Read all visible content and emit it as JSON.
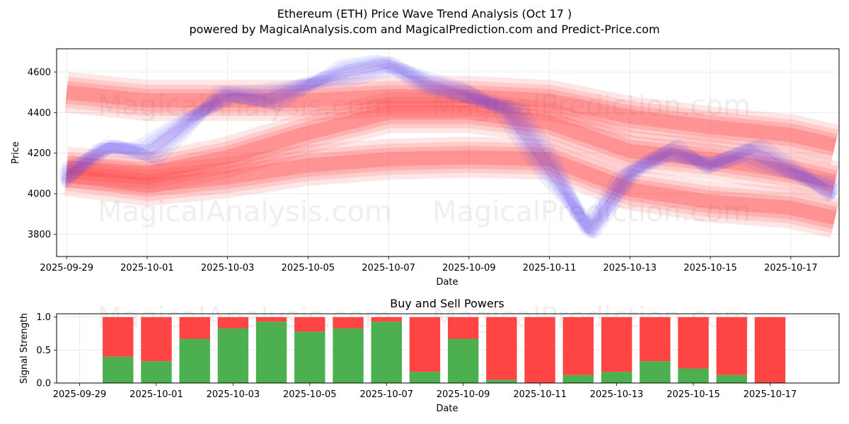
{
  "title_line1": "Ethereum (ETH) Price Wave Trend Analysis (Oct 17 )",
  "title_line2": "powered by MagicalAnalysis.com and MagicalPrediction.com and Predict-Price.com",
  "watermarks": [
    "MagicalAnalysis.com",
    "MagicalPrediction.com"
  ],
  "colors": {
    "buy": "#4caf50",
    "sell": "#ff4444",
    "price_band": "#ff3333",
    "price_line": "#4444ff"
  },
  "chart_data": [
    {
      "type": "line",
      "name": "price-wave",
      "xlabel": "Date",
      "ylabel": "Price",
      "ylim": [
        3690,
        4715
      ],
      "x_range_days": [
        -0.25,
        19.2
      ],
      "x_start_date": "2025-09-29",
      "xtick_labels": [
        "2025-09-29",
        "2025-10-01",
        "2025-10-03",
        "2025-10-05",
        "2025-10-07",
        "2025-10-09",
        "2025-10-11",
        "2025-10-13",
        "2025-10-15",
        "2025-10-17"
      ],
      "ytick_values": [
        3800,
        4000,
        4200,
        4400,
        4600
      ],
      "grid": true,
      "price_series": {
        "name": "Blue price waves",
        "x": [
          0,
          1,
          2,
          3,
          4,
          5,
          6,
          7,
          8,
          9,
          10,
          11,
          12,
          13,
          14,
          15,
          16,
          17,
          18,
          19
        ],
        "values": [
          4090,
          4230,
          4200,
          4350,
          4490,
          4470,
          4540,
          4600,
          4640,
          4540,
          4490,
          4420,
          4130,
          3820,
          4110,
          4210,
          4140,
          4210,
          4110,
          4020
        ]
      },
      "bands": [
        {
          "name": "upper-band",
          "x": [
            0,
            2,
            4,
            6,
            8,
            10,
            12,
            14,
            16,
            18,
            19.1
          ],
          "values": [
            4500,
            4460,
            4460,
            4460,
            4480,
            4480,
            4460,
            4380,
            4330,
            4290,
            4240
          ]
        },
        {
          "name": "lower-band",
          "x": [
            0,
            2,
            4,
            6,
            8,
            10,
            12,
            14,
            16,
            18,
            19.1
          ],
          "values": [
            4090,
            4040,
            4080,
            4140,
            4170,
            4180,
            4170,
            4020,
            3960,
            3930,
            3880
          ]
        },
        {
          "name": "middle-band",
          "x": [
            0,
            2,
            4,
            6,
            8,
            10,
            12,
            14,
            16,
            18,
            19.1
          ],
          "values": [
            4130,
            4100,
            4180,
            4300,
            4400,
            4400,
            4350,
            4210,
            4170,
            4110,
            4060
          ]
        }
      ]
    },
    {
      "type": "bar",
      "name": "buy-sell-powers",
      "title": "Buy and Sell Powers",
      "xlabel": "Date",
      "ylabel": "Signal Strength",
      "ylim": [
        0,
        1.05
      ],
      "ytick_values": [
        0.0,
        0.5,
        1.0
      ],
      "ytick_labels": [
        "0.0",
        "0.5",
        "1.0"
      ],
      "x_range_days": [
        -0.6,
        19.8
      ],
      "x_start_date": "2025-09-29",
      "xtick_labels": [
        "2025-09-29",
        "2025-10-01",
        "2025-10-03",
        "2025-10-05",
        "2025-10-07",
        "2025-10-09",
        "2025-10-11",
        "2025-10-13",
        "2025-10-15",
        "2025-10-17"
      ],
      "categories": [
        "2025-09-30",
        "2025-10-01",
        "2025-10-02",
        "2025-10-03",
        "2025-10-04",
        "2025-10-05",
        "2025-10-06",
        "2025-10-07",
        "2025-10-08",
        "2025-10-09",
        "2025-10-10",
        "2025-10-11",
        "2025-10-12",
        "2025-10-13",
        "2025-10-14",
        "2025-10-15",
        "2025-10-16",
        "2025-10-17"
      ],
      "series": [
        {
          "name": "Buy",
          "values": [
            0.4,
            0.33,
            0.67,
            0.83,
            0.93,
            0.78,
            0.83,
            0.93,
            0.17,
            0.67,
            0.05,
            0.0,
            0.12,
            0.17,
            0.33,
            0.22,
            0.12,
            0.0
          ]
        },
        {
          "name": "Sell",
          "values": [
            0.6,
            0.67,
            0.33,
            0.17,
            0.07,
            0.22,
            0.17,
            0.07,
            0.83,
            0.33,
            0.95,
            1.0,
            0.88,
            0.83,
            0.67,
            0.78,
            0.88,
            1.0
          ]
        }
      ]
    }
  ]
}
